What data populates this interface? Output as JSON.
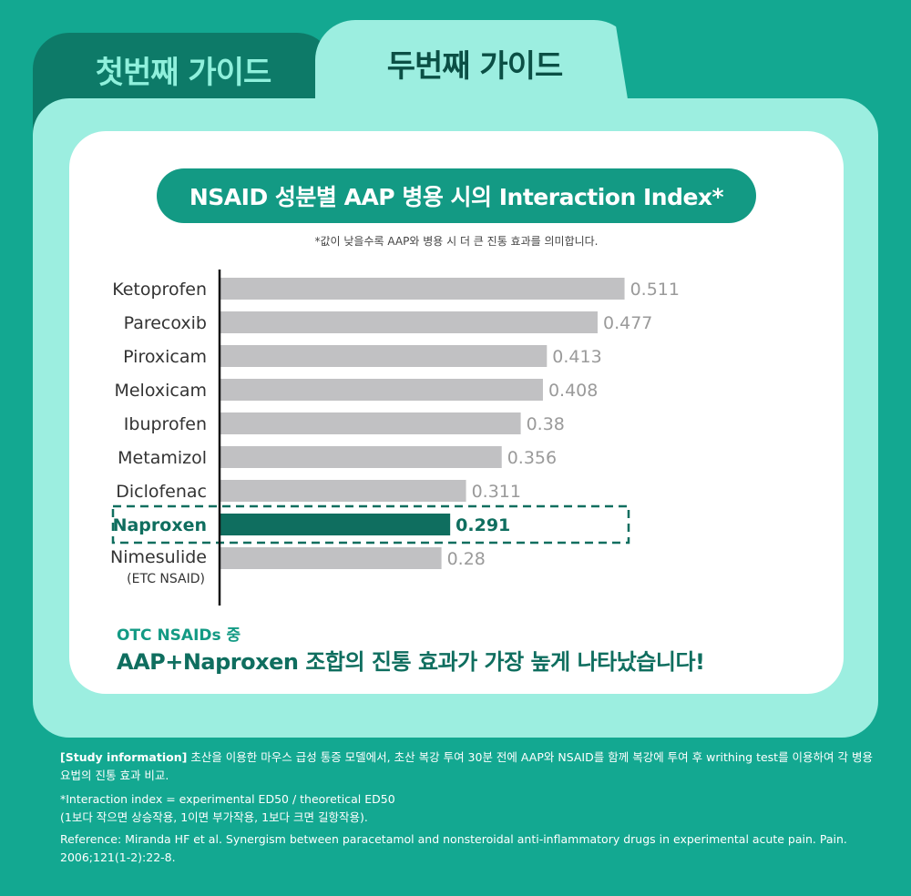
{
  "tabs": [
    {
      "label": "첫번째 가이드",
      "active": false
    },
    {
      "label": "두번째 가이드",
      "active": true
    }
  ],
  "colors": {
    "background": "#13a891",
    "panel": "#9ceee0",
    "bar_default": "#c1c1c3",
    "bar_highlight": "#0f6e5f",
    "accent": "#139a84"
  },
  "title": "NSAID 성분별 AAP 병용 시의 Interaction Index*",
  "subnote": "*값이 낮을수록 AAP와 병용 시 더 큰 진통 효과를 의미합니다.",
  "chart_data": {
    "type": "bar",
    "orientation": "horizontal",
    "categories": [
      "Ketoprofen",
      "Parecoxib",
      "Piroxicam",
      "Meloxicam",
      "Ibuprofen",
      "Metamizol",
      "Diclofenac",
      "Naproxen",
      "Nimesulide"
    ],
    "category_notes": [
      "",
      "",
      "",
      "",
      "",
      "",
      "",
      "",
      "(ETC NSAID)"
    ],
    "values": [
      0.511,
      0.477,
      0.413,
      0.408,
      0.38,
      0.356,
      0.311,
      0.291,
      0.28
    ],
    "value_labels": [
      "0.511",
      "0.477",
      "0.413",
      "0.408",
      "0.38",
      "0.356",
      "0.311",
      "0.291",
      "0.28"
    ],
    "highlight_index": 7,
    "xlim": [
      0,
      0.6
    ],
    "grid": false,
    "legend": "none"
  },
  "conclusion": {
    "line1": "OTC NSAIDs 중",
    "line2": "AAP+Naproxen 조합의 진통 효과가 가장 높게 나타났습니다!"
  },
  "footer": {
    "study_label": "[Study information]",
    "study_text": " 초산을 이용한 마우스 급성 통증 모델에서, 초산 복강 투여 30분 전에 AAP와 NSAID를 함께 복강에 투여 후 writhing test를 이용하여 각 병용 요법의 진통 효과 비교.",
    "interaction_def": "*Interaction index = experimental ED50 / theoretical ED50",
    "interaction_note": "(1보다 작으면 상승작용, 1이면 부가작용, 1보다 크면 길항작용).",
    "reference": "Reference: Miranda HF et al. Synergism between paracetamol and nonsteroidal anti-inflammatory drugs in experimental acute pain. Pain. 2006;121(1-2):22-8."
  }
}
